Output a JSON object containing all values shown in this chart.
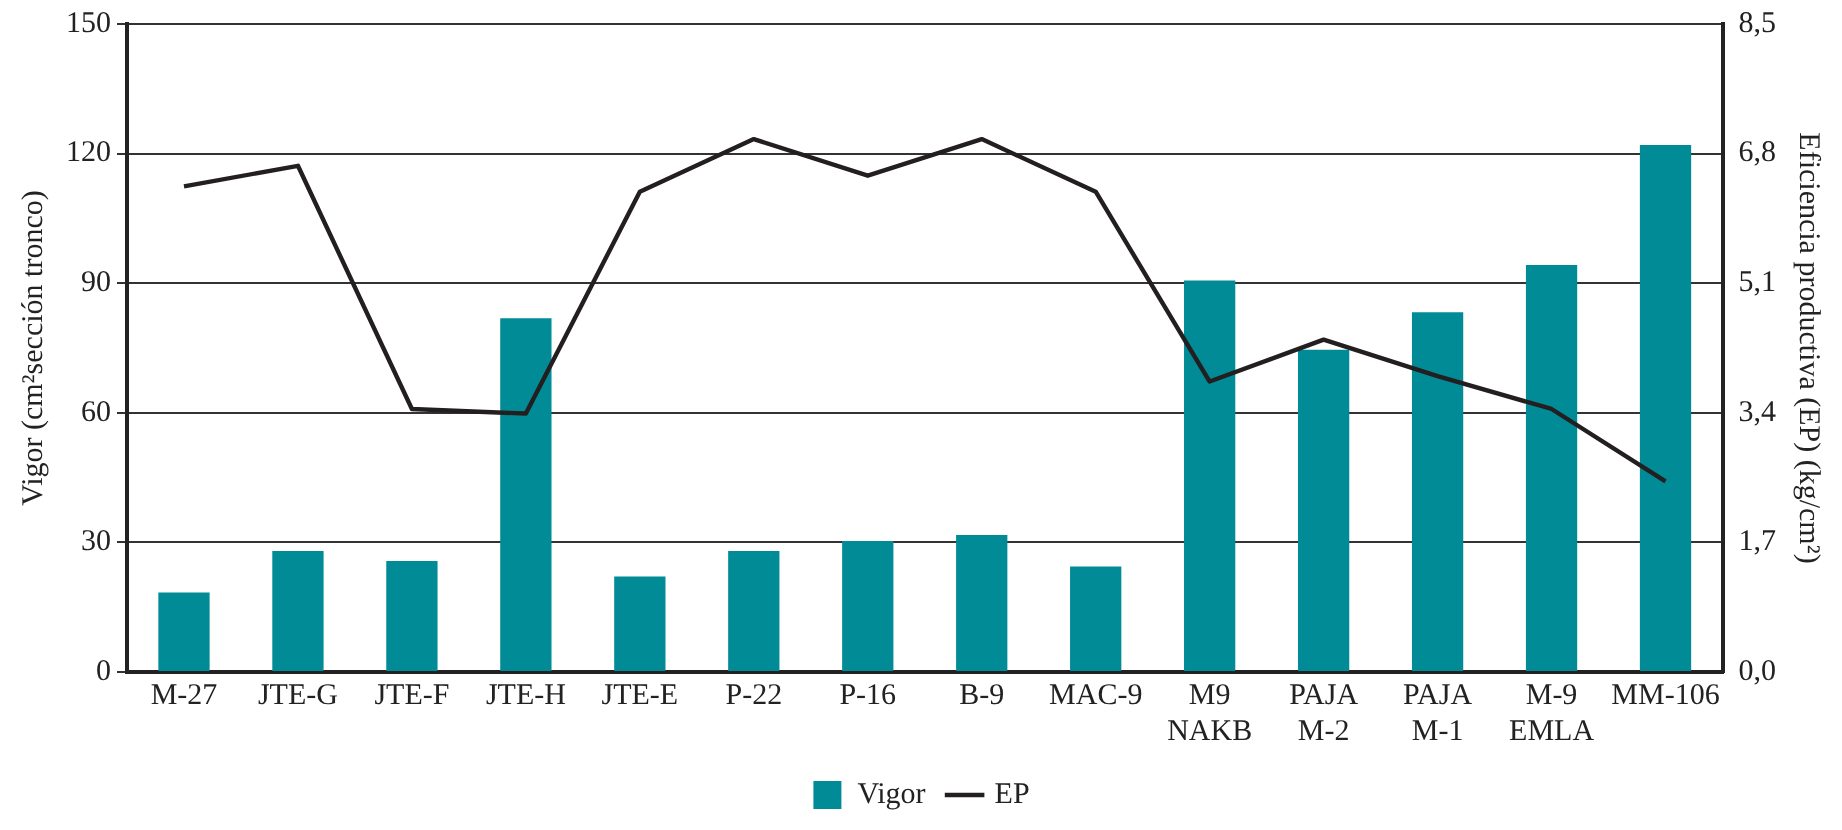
{
  "chart_data": {
    "type": "bar",
    "ylabel": "Vigor (cm²sección tronco)",
    "y2label": "Eficiencia productiva (EP) (kg/cm²)",
    "categories": [
      "M-27",
      "JTE-G",
      "JTE-F",
      "JTE-H",
      "JTE-E",
      "P-22",
      "P-16",
      "B-9",
      "MAC-9",
      "M9 NAKB",
      "PAJA M-2",
      "PAJA M-1",
      "M-9 EMLA",
      "MM-106"
    ],
    "series": [
      {
        "name": "Vigor",
        "color": "#008b96",
        "values": [
          18.4,
          28,
          25.7,
          81.9,
          22.1,
          28,
          30.3,
          31.7,
          24.4,
          90.6,
          74.6,
          83.3,
          94.2,
          122
        ]
      },
      {
        "name": "EP",
        "type": "line",
        "axis": "y2",
        "color": "#231f20",
        "values": [
          6.37,
          6.64,
          3.45,
          3.39,
          6.3,
          6.99,
          6.51,
          6.99,
          6.3,
          3.81,
          4.36,
          3.88,
          3.45,
          2.5
        ]
      }
    ],
    "ylim": [
      0,
      150
    ],
    "yticks": [
      0,
      30,
      60,
      90,
      120,
      150
    ],
    "y2lim": [
      0,
      8.5
    ],
    "y2ticks": [
      {
        "value": 0,
        "label": "0,0"
      },
      {
        "value": 1.7,
        "label": "1,7"
      },
      {
        "value": 3.4,
        "label": "3,4"
      },
      {
        "value": 5.1,
        "label": "5,1"
      },
      {
        "value": 6.8,
        "label": "6,8"
      },
      {
        "value": 8.5,
        "label": "8,5"
      }
    ],
    "grid": "y",
    "legend": "bottom",
    "marker": "none",
    "line_style": "solid"
  }
}
